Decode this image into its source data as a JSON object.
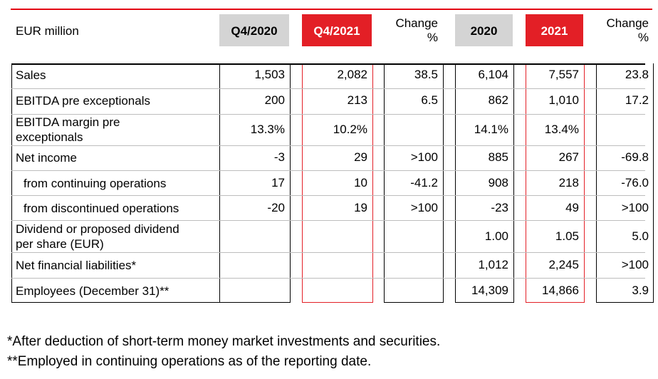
{
  "header": {
    "unit": "EUR million",
    "q4_2020": "Q4/2020",
    "q4_2021": "Q4/2021",
    "change_q_line1": "Change",
    "change_q_line2": "%",
    "y2020": "2020",
    "y2021": "2021",
    "change_y_line1": "Change",
    "change_y_line2": "%"
  },
  "rows": [
    {
      "label": "Sales",
      "q4_2020": "1,503",
      "q4_2021": "2,082",
      "change_q": "38.5",
      "y2020": "6,104",
      "y2021": "7,557",
      "change_y": "23.8"
    },
    {
      "label": "EBITDA pre exceptionals",
      "q4_2020": "200",
      "q4_2021": "213",
      "change_q": "6.5",
      "y2020": "862",
      "y2021": "1,010",
      "change_y": "17.2"
    },
    {
      "label_line1": "EBITDA margin pre",
      "label_line2": "exceptionals",
      "q4_2020": "13.3%",
      "q4_2021": "10.2%",
      "change_q": "",
      "y2020": "14.1%",
      "y2021": "13.4%",
      "change_y": ""
    },
    {
      "label": "Net income",
      "q4_2020": "-3",
      "q4_2021": "29",
      "change_q": ">100",
      "y2020": "885",
      "y2021": "267",
      "change_y": "-69.8"
    },
    {
      "label": "from continuing operations",
      "q4_2020": "17",
      "q4_2021": "10",
      "change_q": "-41.2",
      "y2020": "908",
      "y2021": "218",
      "change_y": "-76.0"
    },
    {
      "label": "from discontinued operations",
      "q4_2020": "-20",
      "q4_2021": "19",
      "change_q": ">100",
      "y2020": "-23",
      "y2021": "49",
      "change_y": ">100"
    },
    {
      "label_line1": "Dividend or proposed dividend",
      "label_line2": "per share (EUR)",
      "q4_2020": "",
      "q4_2021": "",
      "change_q": "",
      "y2020": "1.00",
      "y2021": "1.05",
      "change_y": "5.0"
    },
    {
      "label": "Net financial liabilities*",
      "q4_2020": "",
      "q4_2021": "",
      "change_q": "",
      "y2020": "1,012",
      "y2021": "2,245",
      "change_y": ">100"
    },
    {
      "label": "Employees (December 31)**",
      "q4_2020": "",
      "q4_2021": "",
      "change_q": "",
      "y2020": "14,309",
      "y2021": "14,866",
      "change_y": "3.9"
    }
  ],
  "footnotes": {
    "note1": "*After deduction of short-term money market investments and securities.",
    "note2": "**Employed in continuing operations as of the reporting date."
  },
  "colors": {
    "accent_red": "#e31f26",
    "header_grey": "#d4d4d4"
  }
}
